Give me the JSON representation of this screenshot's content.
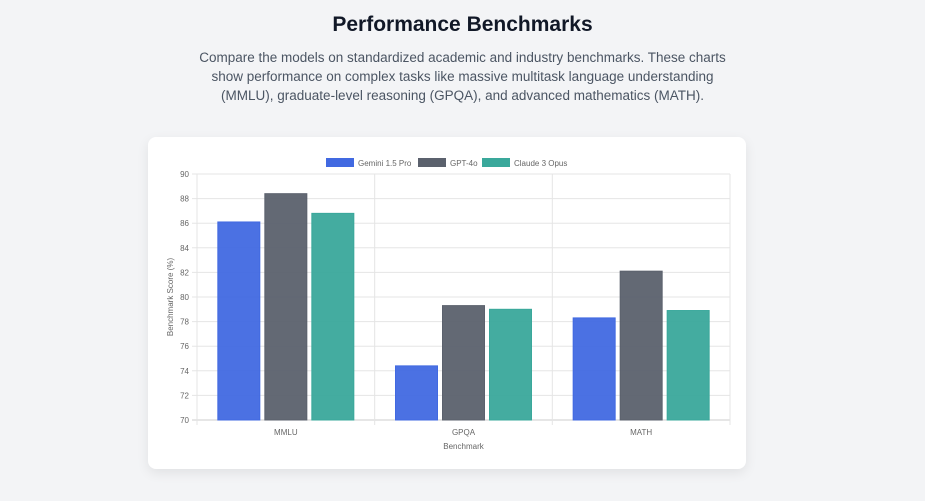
{
  "header": {
    "title": "Performance Benchmarks",
    "description": "Compare the models on standardized academic and industry benchmarks. These charts show performance on complex tasks like massive multitask language understanding (MMLU), graduate-level reasoning (GPQA), and advanced mathematics (MATH)."
  },
  "chart_data": {
    "type": "bar",
    "title": "",
    "xlabel": "Benchmark",
    "ylabel": "Benchmark Score (%)",
    "ylim": [
      70,
      90
    ],
    "yticks": [
      70,
      72,
      74,
      76,
      78,
      80,
      82,
      84,
      86,
      88,
      90
    ],
    "grid": true,
    "legend_position": "top",
    "categories": [
      "MMLU",
      "GPQA",
      "MATH"
    ],
    "series": [
      {
        "name": "Gemini 1.5 Pro",
        "color": "#4169e1",
        "values": [
          86.1,
          74.4,
          78.3
        ]
      },
      {
        "name": "GPT-4o",
        "color": "#5b616d",
        "values": [
          88.4,
          79.3,
          82.1
        ]
      },
      {
        "name": "Claude 3 Opus",
        "color": "#3aa89b",
        "values": [
          86.8,
          79.0,
          78.9
        ]
      }
    ]
  }
}
